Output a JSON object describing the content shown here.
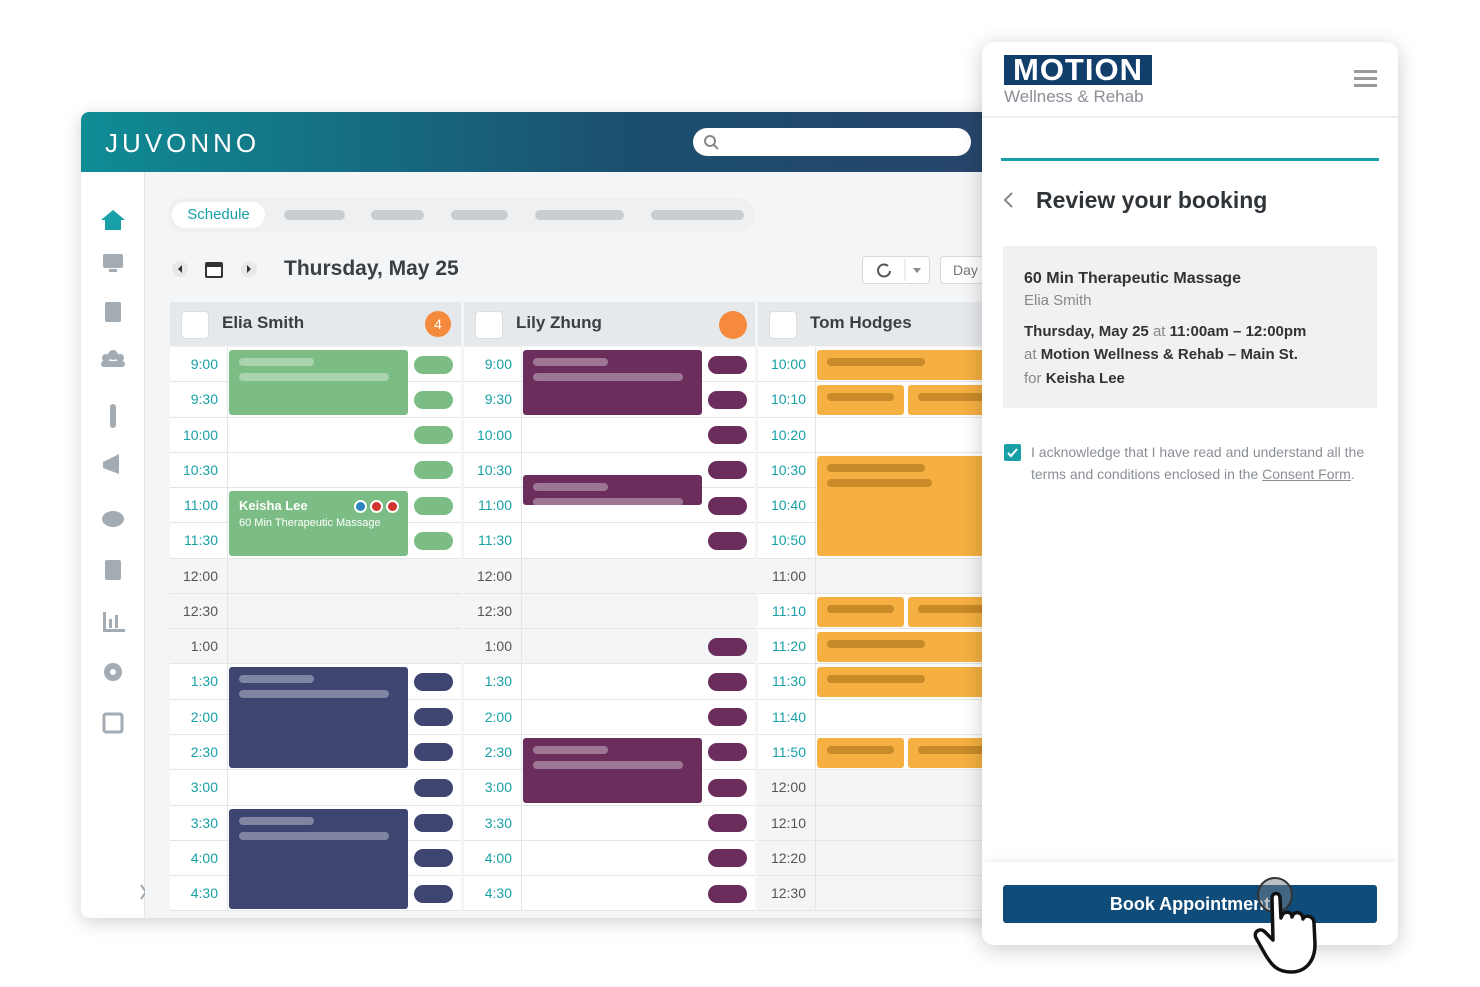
{
  "app": {
    "logo": "JUVONNO",
    "tabs": [
      "Schedule"
    ],
    "date": "Thursday, May 25",
    "view": "Day",
    "columns": [
      {
        "name": "Elia Smith",
        "badge": 4,
        "times": [
          "9:00",
          "9:30",
          "10:00",
          "10:30",
          "11:00",
          "11:30",
          "12:00",
          "12:30",
          "1:00",
          "1:30",
          "2:00",
          "2:30",
          "3:00",
          "3:30",
          "4:00",
          "4:30"
        ]
      },
      {
        "name": "Lily Zhung",
        "times": [
          "9:00",
          "9:30",
          "10:00",
          "10:30",
          "11:00",
          "11:30",
          "12:00",
          "12:30",
          "1:00",
          "1:30",
          "2:00",
          "2:30",
          "3:00",
          "3:30",
          "4:00",
          "4:30"
        ]
      },
      {
        "name": "Tom Hodges",
        "times": [
          "10:00",
          "10:10",
          "10:20",
          "10:30",
          "10:40",
          "10:50",
          "11:00",
          "11:10",
          "11:20",
          "11:30",
          "11:40",
          "11:50",
          "12:00",
          "12:10",
          "12:20",
          "12:30"
        ]
      }
    ],
    "appointment": {
      "client": "Keisha Lee",
      "service": "60 Min Therapeutic Massage"
    }
  },
  "booking": {
    "brand": "MOTION",
    "brand_subtitle": "Wellness & Rehab",
    "heading": "Review your booking",
    "service": "60 Min Therapeutic Massage",
    "provider": "Elia Smith",
    "date": "Thursday, May 25",
    "date_connector": "at",
    "time": "11:00am – 12:00pm",
    "location_prefix": "at",
    "location": "Motion Wellness & Rehab – Main St.",
    "client_prefix": "for",
    "client": "Keisha Lee",
    "consent_text": "I acknowledge that I have read and understand all the terms and conditions enclosed in the",
    "consent_link": "Consent Form",
    "consent_end": ".",
    "button": "Book Appointment"
  }
}
